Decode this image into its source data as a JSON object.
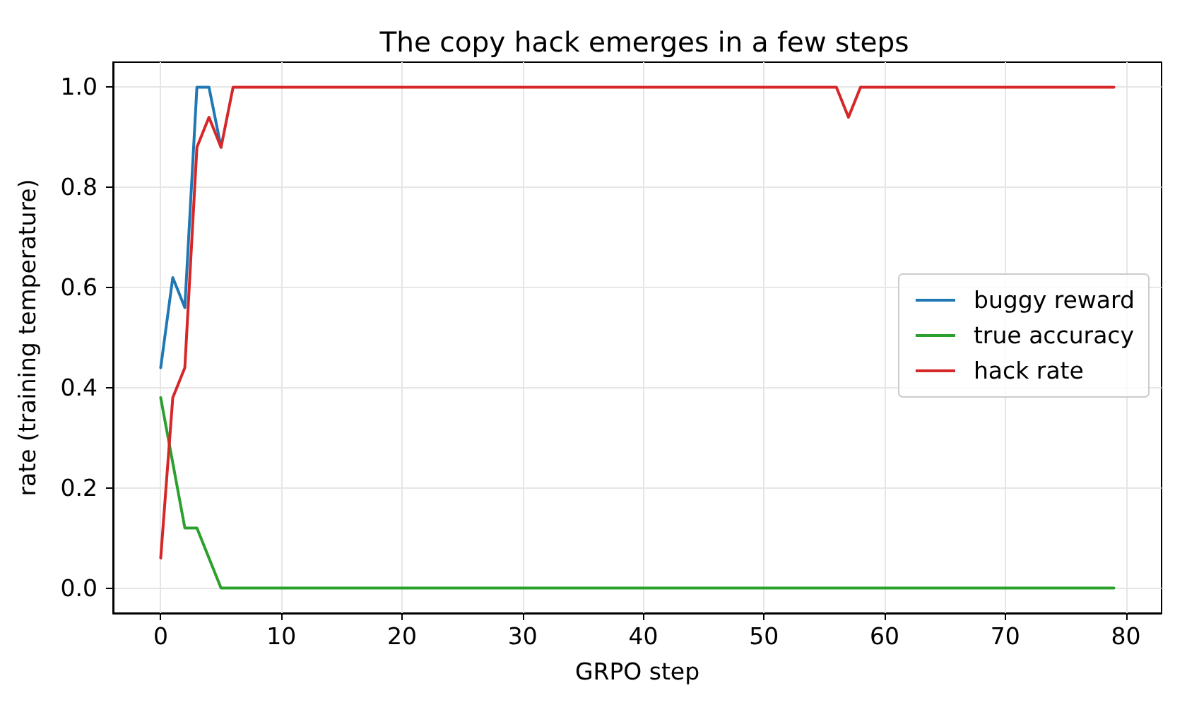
{
  "chart_data": {
    "type": "line",
    "title": "The copy hack emerges in a few steps",
    "xlabel": "GRPO step",
    "ylabel": "rate (training temperature)",
    "x": [
      0,
      1,
      2,
      3,
      4,
      5,
      6,
      7,
      8,
      9,
      10,
      11,
      12,
      13,
      14,
      15,
      16,
      17,
      18,
      19,
      20,
      21,
      22,
      23,
      24,
      25,
      26,
      27,
      28,
      29,
      30,
      31,
      32,
      33,
      34,
      35,
      36,
      37,
      38,
      39,
      40,
      41,
      42,
      43,
      44,
      45,
      46,
      47,
      48,
      49,
      50,
      51,
      52,
      53,
      54,
      55,
      56,
      57,
      58,
      59,
      60,
      61,
      62,
      63,
      64,
      65,
      66,
      67,
      68,
      69,
      70,
      71,
      72,
      73,
      74,
      75,
      76,
      77,
      78,
      79
    ],
    "series": [
      {
        "name": "buggy reward",
        "color": "#1f77b4",
        "values": [
          0.44,
          0.62,
          0.56,
          1,
          1,
          0.88,
          null,
          null,
          null,
          null,
          null,
          null,
          null,
          null,
          null,
          null,
          null,
          null,
          null,
          null,
          null,
          null,
          null,
          null,
          null,
          null,
          null,
          null,
          null,
          null,
          null,
          null,
          null,
          null,
          null,
          null,
          null,
          null,
          null,
          null,
          null,
          null,
          null,
          null,
          null,
          null,
          null,
          null,
          null,
          null,
          null,
          null,
          null,
          null,
          null,
          null,
          null,
          null,
          null,
          null,
          null,
          null,
          null,
          null,
          null,
          null,
          null,
          null,
          null,
          null,
          null,
          null,
          null,
          null,
          null,
          null,
          null,
          null,
          null,
          null
        ]
      },
      {
        "name": "true accuracy",
        "color": "#2ca02c",
        "values": [
          0.38,
          0.25,
          0.12,
          0.12,
          0.06,
          0,
          0,
          0,
          0,
          0,
          0,
          0,
          0,
          0,
          0,
          0,
          0,
          0,
          0,
          0,
          0,
          0,
          0,
          0,
          0,
          0,
          0,
          0,
          0,
          0,
          0,
          0,
          0,
          0,
          0,
          0,
          0,
          0,
          0,
          0,
          0,
          0,
          0,
          0,
          0,
          0,
          0,
          0,
          0,
          0,
          0,
          0,
          0,
          0,
          0,
          0,
          0,
          0,
          0,
          0,
          0,
          0,
          0,
          0,
          0,
          0,
          0,
          0,
          0,
          0,
          0,
          0,
          0,
          0,
          0,
          0,
          0,
          0,
          0,
          0
        ]
      },
      {
        "name": "hack rate",
        "color": "#d62728",
        "values": [
          0.06,
          0.38,
          0.44,
          0.88,
          0.94,
          0.88,
          1,
          1,
          1,
          1,
          1,
          1,
          1,
          1,
          1,
          1,
          1,
          1,
          1,
          1,
          1,
          1,
          1,
          1,
          1,
          1,
          1,
          1,
          1,
          1,
          1,
          1,
          1,
          1,
          1,
          1,
          1,
          1,
          1,
          1,
          1,
          1,
          1,
          1,
          1,
          1,
          1,
          1,
          1,
          1,
          1,
          1,
          1,
          1,
          1,
          1,
          1,
          0.94,
          1,
          1,
          1,
          1,
          1,
          1,
          1,
          1,
          1,
          1,
          1,
          1,
          1,
          1,
          1,
          1,
          1,
          1,
          1,
          1,
          1,
          1
        ]
      }
    ],
    "xlim": [
      -3.95,
      82.95
    ],
    "xticks": [
      0,
      10,
      20,
      30,
      40,
      50,
      60,
      70,
      80
    ],
    "ylim": [
      -0.05,
      1.05
    ],
    "yticks": [
      {
        "value": 0,
        "label": "0.0"
      },
      0.2,
      0.4,
      0.6,
      0.8,
      {
        "value": 1,
        "label": "1.0"
      }
    ],
    "grid": true,
    "legend": "right",
    "line_style": "solid"
  }
}
